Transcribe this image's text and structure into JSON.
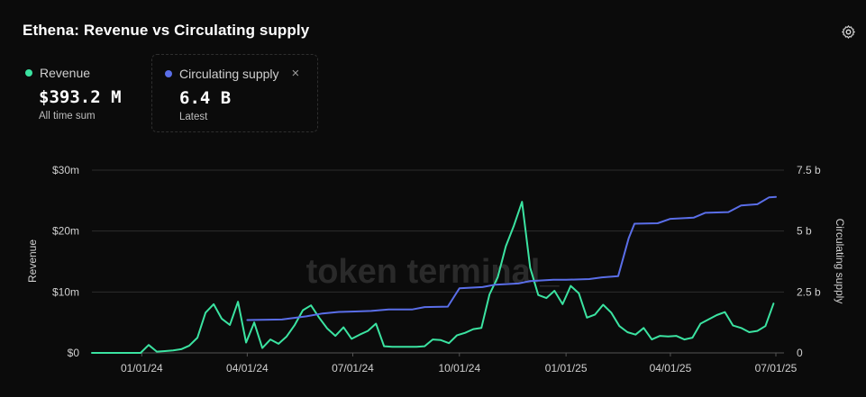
{
  "header": {
    "title": "Ethena: Revenue vs Circulating supply",
    "settings_icon": "gear-icon"
  },
  "legend": {
    "revenue": {
      "label": "Revenue",
      "value": "$393.2 M",
      "sub": "All time sum",
      "color": "#3be3a1"
    },
    "supply": {
      "label": "Circulating supply",
      "value": "6.4 B",
      "sub": "Latest",
      "color": "#5a6ee8",
      "close_icon": "×"
    }
  },
  "watermark": "token terminal_",
  "chart_data": {
    "type": "line",
    "title": "Ethena: Revenue vs Circulating supply",
    "x_tick_labels": [
      "01/01/24",
      "04/01/24",
      "07/01/24",
      "10/01/24",
      "01/01/25",
      "04/01/25",
      "07/01/25"
    ],
    "y_left": {
      "label": "Revenue",
      "range": [
        0,
        30
      ],
      "unit": "m",
      "tick_labels": [
        "$0",
        "$10m",
        "$20m",
        "$30m"
      ]
    },
    "y_right": {
      "label": "Circulating supply",
      "range": [
        0,
        7.5
      ],
      "unit": "b",
      "tick_labels": [
        "0",
        "2.5 b",
        "5 b",
        "7.5 b"
      ]
    },
    "grid": true,
    "series": [
      {
        "name": "Revenue",
        "axis": "left",
        "color": "#3be3a1",
        "points": [
          [
            "2023-11-19",
            0
          ],
          [
            "2023-12-03",
            0
          ],
          [
            "2023-12-17",
            0
          ],
          [
            "2023-12-31",
            0
          ],
          [
            "2024-01-07",
            1.3
          ],
          [
            "2024-01-14",
            0.2
          ],
          [
            "2024-01-21",
            0.3
          ],
          [
            "2024-01-28",
            0.4
          ],
          [
            "2024-02-04",
            0.6
          ],
          [
            "2024-02-11",
            1.2
          ],
          [
            "2024-02-18",
            2.5
          ],
          [
            "2024-02-25",
            6.6
          ],
          [
            "2024-03-03",
            8.0
          ],
          [
            "2024-03-10",
            5.6
          ],
          [
            "2024-03-17",
            4.6
          ],
          [
            "2024-03-24",
            8.4
          ],
          [
            "2024-03-31",
            1.7
          ],
          [
            "2024-04-07",
            5.0
          ],
          [
            "2024-04-14",
            0.8
          ],
          [
            "2024-04-21",
            2.2
          ],
          [
            "2024-04-28",
            1.5
          ],
          [
            "2024-05-05",
            2.7
          ],
          [
            "2024-05-12",
            4.6
          ],
          [
            "2024-05-19",
            7.0
          ],
          [
            "2024-05-26",
            7.8
          ],
          [
            "2024-06-02",
            5.8
          ],
          [
            "2024-06-09",
            4.0
          ],
          [
            "2024-06-16",
            2.8
          ],
          [
            "2024-06-23",
            4.2
          ],
          [
            "2024-06-30",
            2.3
          ],
          [
            "2024-07-07",
            3.0
          ],
          [
            "2024-07-14",
            3.6
          ],
          [
            "2024-07-21",
            4.8
          ],
          [
            "2024-07-28",
            1.1
          ],
          [
            "2024-08-04",
            1.0
          ],
          [
            "2024-08-11",
            1.0
          ],
          [
            "2024-08-18",
            1.0
          ],
          [
            "2024-08-25",
            1.0
          ],
          [
            "2024-09-01",
            1.1
          ],
          [
            "2024-09-08",
            2.2
          ],
          [
            "2024-09-15",
            2.1
          ],
          [
            "2024-09-22",
            1.6
          ],
          [
            "2024-09-29",
            2.9
          ],
          [
            "2024-10-06",
            3.3
          ],
          [
            "2024-10-13",
            3.9
          ],
          [
            "2024-10-20",
            4.1
          ],
          [
            "2024-10-27",
            9.6
          ],
          [
            "2024-11-03",
            12.4
          ],
          [
            "2024-11-10",
            17.5
          ],
          [
            "2024-11-17",
            20.9
          ],
          [
            "2024-11-24",
            24.8
          ],
          [
            "2024-12-01",
            14.0
          ],
          [
            "2024-12-08",
            9.5
          ],
          [
            "2024-12-15",
            9.0
          ],
          [
            "2024-12-22",
            10.2
          ],
          [
            "2024-12-29",
            8.0
          ],
          [
            "2025-01-05",
            11.0
          ],
          [
            "2025-01-12",
            9.8
          ],
          [
            "2025-01-19",
            5.8
          ],
          [
            "2025-01-26",
            6.3
          ],
          [
            "2025-02-02",
            7.9
          ],
          [
            "2025-02-09",
            6.6
          ],
          [
            "2025-02-16",
            4.4
          ],
          [
            "2025-02-23",
            3.4
          ],
          [
            "2025-03-02",
            3.0
          ],
          [
            "2025-03-09",
            4.1
          ],
          [
            "2025-03-16",
            2.2
          ],
          [
            "2025-03-23",
            2.8
          ],
          [
            "2025-03-30",
            2.7
          ],
          [
            "2025-04-06",
            2.8
          ],
          [
            "2025-04-13",
            2.2
          ],
          [
            "2025-04-20",
            2.5
          ],
          [
            "2025-04-27",
            4.8
          ],
          [
            "2025-05-04",
            5.5
          ],
          [
            "2025-05-11",
            6.2
          ],
          [
            "2025-05-18",
            6.7
          ],
          [
            "2025-05-25",
            4.5
          ],
          [
            "2025-06-01",
            4.1
          ],
          [
            "2025-06-08",
            3.4
          ],
          [
            "2025-06-15",
            3.6
          ],
          [
            "2025-06-22",
            4.4
          ],
          [
            "2025-06-29",
            8.1
          ]
        ]
      },
      {
        "name": "Circulating supply",
        "axis": "right",
        "color": "#5a6ee8",
        "points": [
          [
            "2024-04-01",
            1.35
          ],
          [
            "2024-05-01",
            1.37
          ],
          [
            "2024-05-22",
            1.5
          ],
          [
            "2024-06-05",
            1.62
          ],
          [
            "2024-06-19",
            1.68
          ],
          [
            "2024-07-03",
            1.7
          ],
          [
            "2024-07-17",
            1.72
          ],
          [
            "2024-08-01",
            1.78
          ],
          [
            "2024-08-21",
            1.78
          ],
          [
            "2024-09-01",
            1.88
          ],
          [
            "2024-09-21",
            1.9
          ],
          [
            "2024-10-01",
            2.65
          ],
          [
            "2024-10-21",
            2.7
          ],
          [
            "2024-11-01",
            2.8
          ],
          [
            "2024-11-21",
            2.85
          ],
          [
            "2024-12-01",
            2.95
          ],
          [
            "2024-12-21",
            3.0
          ],
          [
            "2025-01-01",
            3.0
          ],
          [
            "2025-01-21",
            3.03
          ],
          [
            "2025-02-01",
            3.1
          ],
          [
            "2025-02-15",
            3.15
          ],
          [
            "2025-02-24",
            4.7
          ],
          [
            "2025-03-01",
            5.3
          ],
          [
            "2025-03-21",
            5.32
          ],
          [
            "2025-04-01",
            5.5
          ],
          [
            "2025-04-21",
            5.55
          ],
          [
            "2025-05-01",
            5.75
          ],
          [
            "2025-05-21",
            5.78
          ],
          [
            "2025-06-01",
            6.05
          ],
          [
            "2025-06-15",
            6.1
          ],
          [
            "2025-06-25",
            6.38
          ],
          [
            "2025-07-01",
            6.4
          ]
        ]
      }
    ]
  }
}
